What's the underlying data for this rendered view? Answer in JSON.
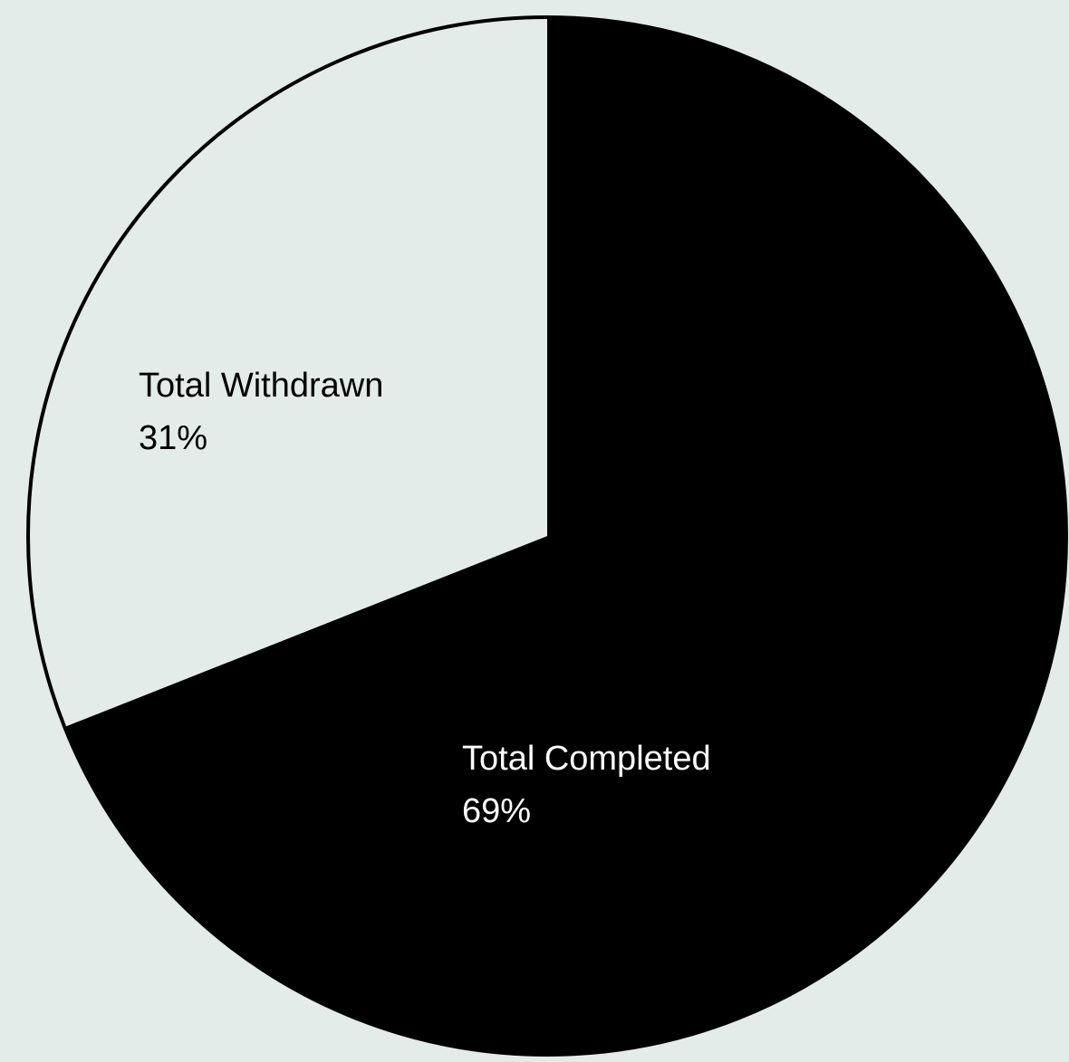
{
  "chart_data": {
    "type": "pie",
    "slices": [
      {
        "label": "Total Completed",
        "value": 69,
        "percent_label": "69%",
        "color": "#000000"
      },
      {
        "label": "Total Withdrawn",
        "value": 31,
        "percent_label": "31%",
        "color": "#e4ecea"
      }
    ],
    "start_angle": "12 o'clock",
    "direction": "clockwise",
    "title": "",
    "legend": "none"
  },
  "colors": {
    "background": "#e4ecea",
    "outline": "#000000",
    "label_on_dark": "#ffffff",
    "label_on_light": "#000000"
  }
}
